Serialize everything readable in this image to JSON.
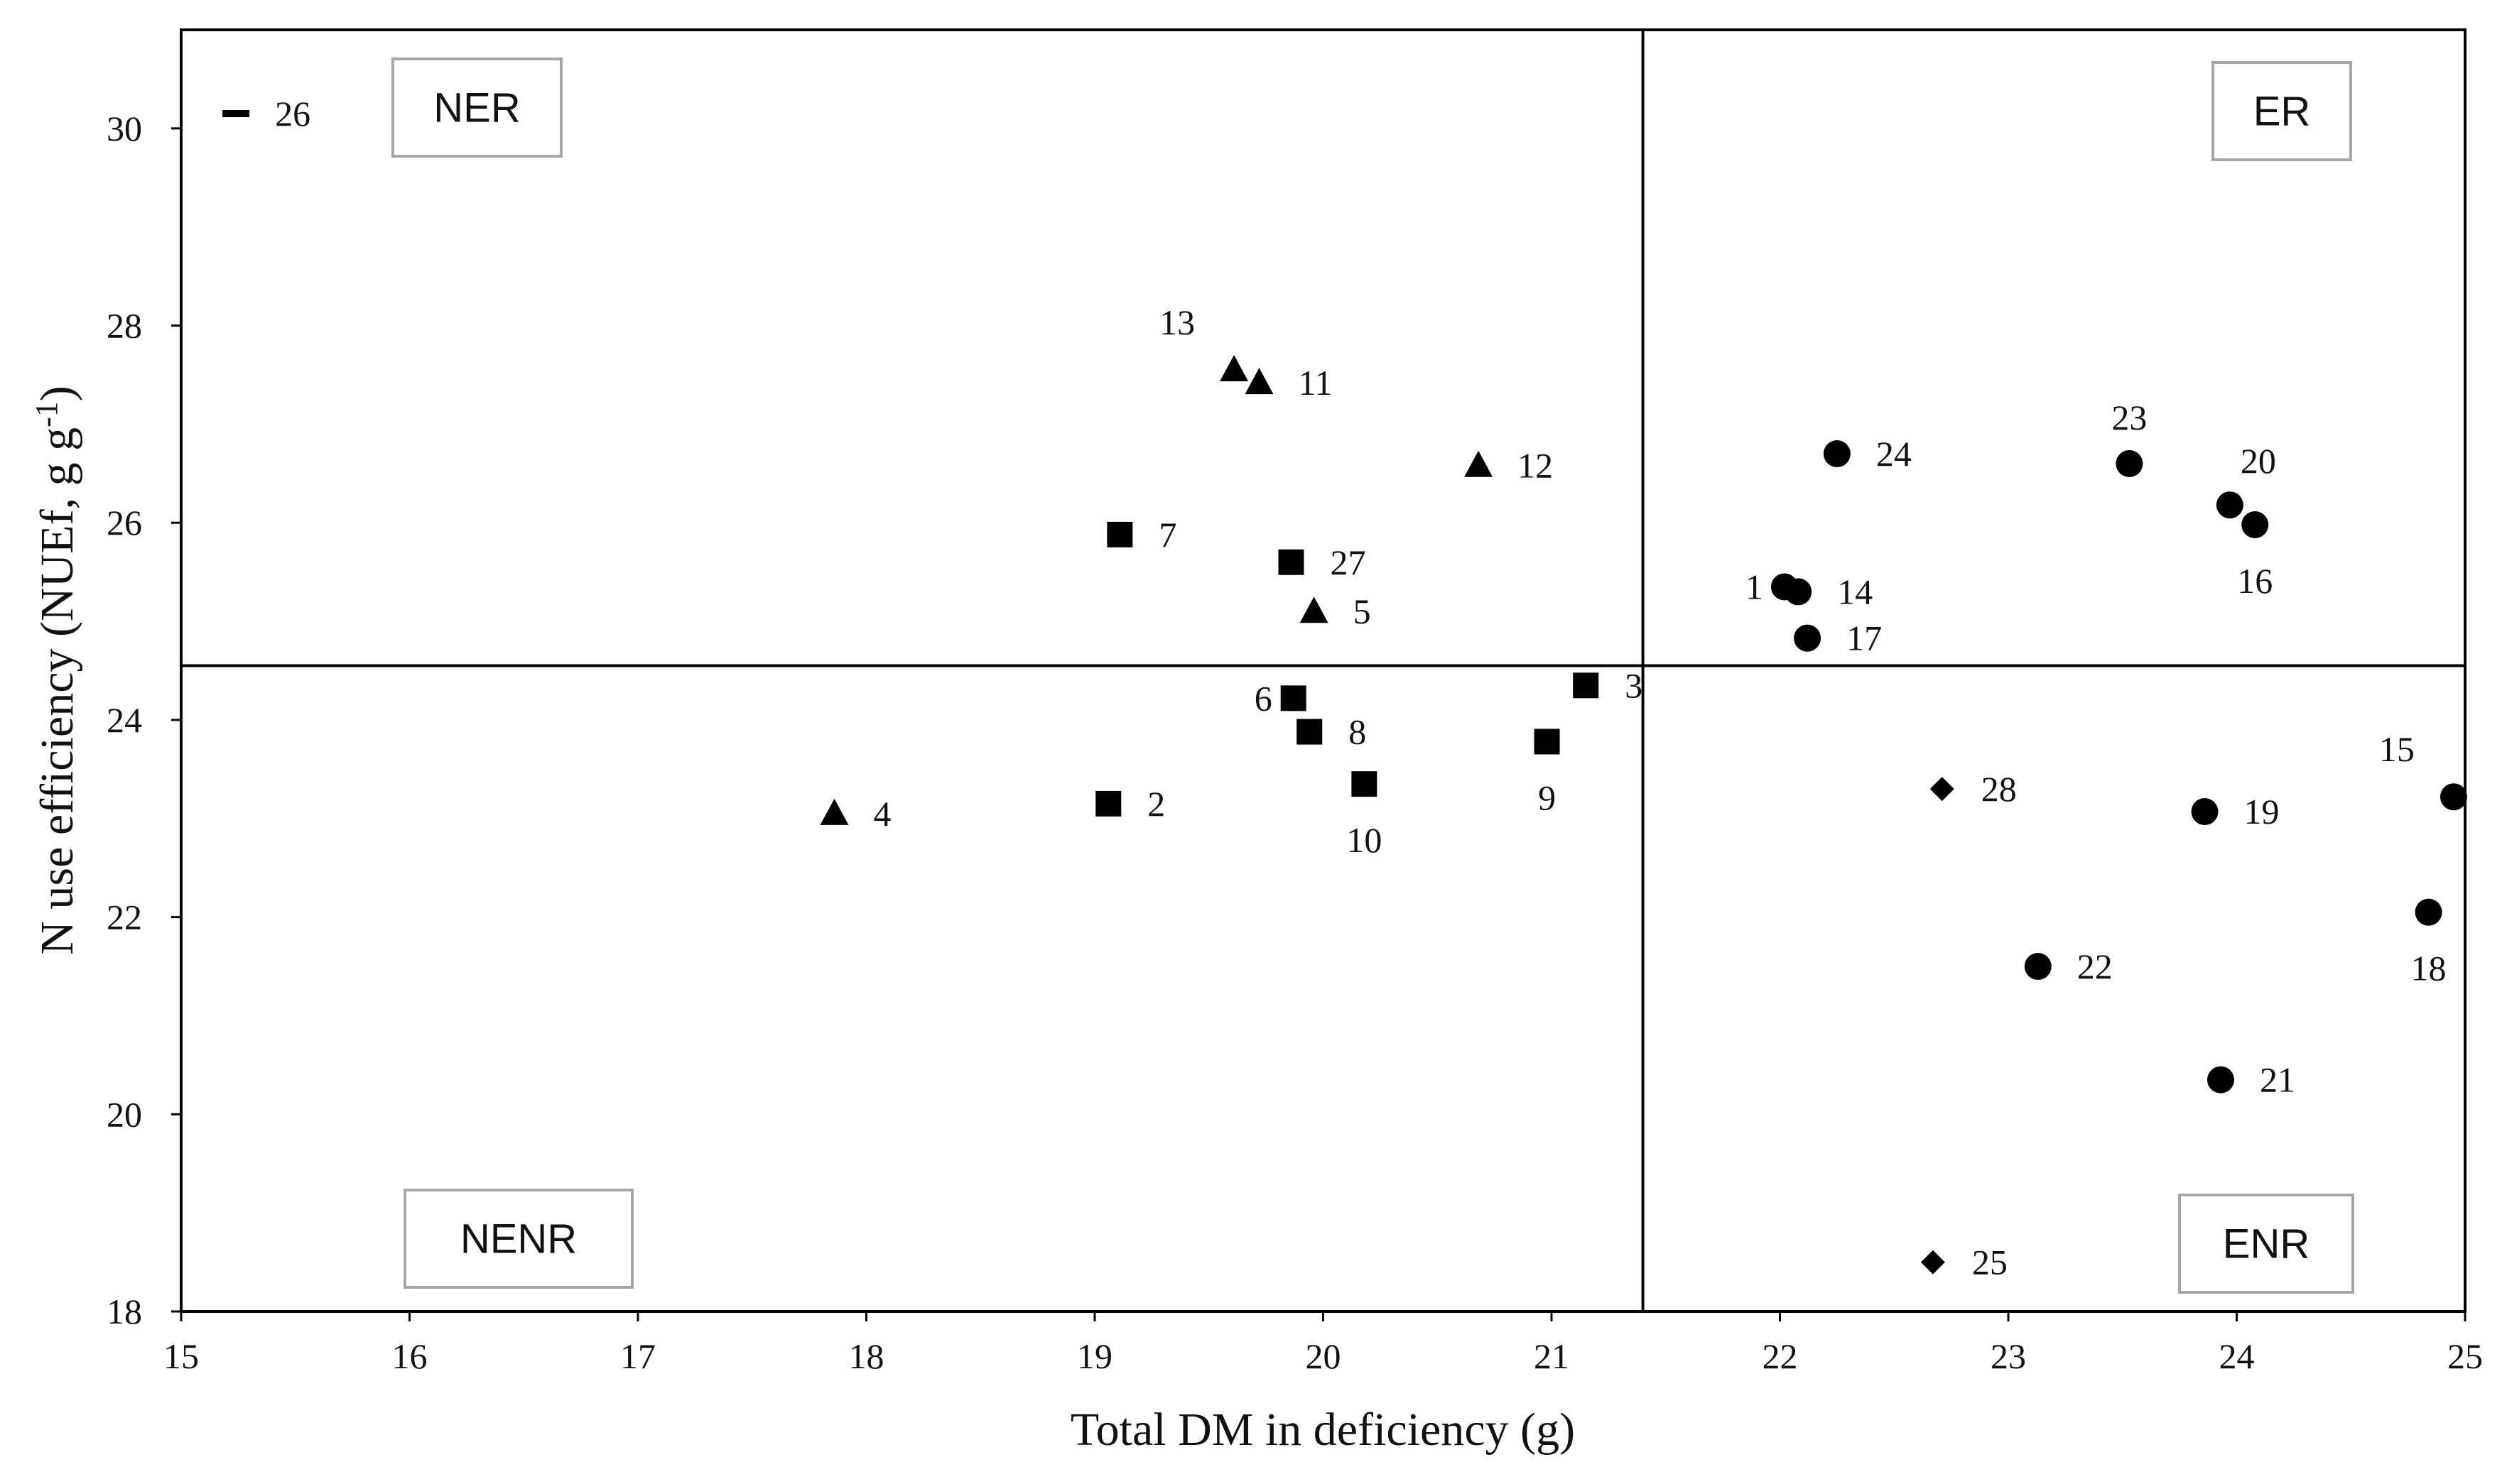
{
  "chart_data": {
    "type": "scatter",
    "xlabel": "Total DM in deficiency (g)",
    "ylabel_main": "N use efficiency (NUEf,  g g",
    "ylabel_sup": "-1",
    "ylabel_end": ")",
    "xlim": [
      15,
      25
    ],
    "ylim": [
      18,
      31
    ],
    "x_ticks": [
      15,
      16,
      17,
      18,
      19,
      20,
      21,
      22,
      23,
      24,
      25
    ],
    "y_ticks": [
      18,
      20,
      22,
      24,
      26,
      28,
      30
    ],
    "x_divider": 21.4,
    "y_divider": 24.55,
    "quadrant_labels": [
      {
        "text": "NER",
        "pos": "top-left"
      },
      {
        "text": "ER",
        "pos": "top-right"
      },
      {
        "text": "NENR",
        "pos": "bottom-left"
      },
      {
        "text": "ENR",
        "pos": "bottom-right"
      }
    ],
    "points": [
      {
        "id": "1",
        "x": 22.02,
        "y": 25.35,
        "marker": "circle",
        "label_dir": "w"
      },
      {
        "id": "2",
        "x": 19.06,
        "y": 23.15,
        "marker": "square",
        "label_dir": "e"
      },
      {
        "id": "3",
        "x": 21.15,
        "y": 24.35,
        "marker": "square",
        "label_dir": "e"
      },
      {
        "id": "4",
        "x": 17.86,
        "y": 23.05,
        "marker": "triangle",
        "label_dir": "e"
      },
      {
        "id": "5",
        "x": 19.96,
        "y": 25.1,
        "marker": "triangle",
        "label_dir": "e"
      },
      {
        "id": "6",
        "x": 19.87,
        "y": 24.22,
        "marker": "square",
        "label_dir": "w"
      },
      {
        "id": "7",
        "x": 19.11,
        "y": 25.88,
        "marker": "square",
        "label_dir": "e"
      },
      {
        "id": "8",
        "x": 19.94,
        "y": 23.88,
        "marker": "square",
        "label_dir": "e"
      },
      {
        "id": "9",
        "x": 20.98,
        "y": 23.78,
        "marker": "square",
        "label_dir": "s"
      },
      {
        "id": "10",
        "x": 20.18,
        "y": 23.35,
        "marker": "square",
        "label_dir": "s"
      },
      {
        "id": "11",
        "x": 19.72,
        "y": 27.42,
        "marker": "triangle",
        "label_dir": "e"
      },
      {
        "id": "12",
        "x": 20.68,
        "y": 26.58,
        "marker": "triangle",
        "label_dir": "e"
      },
      {
        "id": "13",
        "x": 19.61,
        "y": 27.55,
        "marker": "triangle",
        "label_dir": "nw"
      },
      {
        "id": "14",
        "x": 22.08,
        "y": 25.3,
        "marker": "circle",
        "label_dir": "e"
      },
      {
        "id": "15",
        "x": 24.95,
        "y": 23.22,
        "marker": "circle",
        "label_dir": "nw"
      },
      {
        "id": "16",
        "x": 24.08,
        "y": 25.98,
        "marker": "circle",
        "label_dir": "s"
      },
      {
        "id": "17",
        "x": 22.12,
        "y": 24.83,
        "marker": "circle",
        "label_dir": "e"
      },
      {
        "id": "18",
        "x": 24.84,
        "y": 22.05,
        "marker": "circle",
        "label_dir": "s"
      },
      {
        "id": "19",
        "x": 23.86,
        "y": 23.07,
        "marker": "circle",
        "label_dir": "e"
      },
      {
        "id": "20",
        "x": 23.97,
        "y": 26.18,
        "marker": "circle",
        "label_dir": "ne"
      },
      {
        "id": "21",
        "x": 23.93,
        "y": 20.35,
        "marker": "circle",
        "label_dir": "e"
      },
      {
        "id": "22",
        "x": 23.13,
        "y": 21.5,
        "marker": "circle",
        "label_dir": "e"
      },
      {
        "id": "23",
        "x": 23.53,
        "y": 26.6,
        "marker": "circle",
        "label_dir": "n"
      },
      {
        "id": "24",
        "x": 22.25,
        "y": 26.7,
        "marker": "circle",
        "label_dir": "e"
      },
      {
        "id": "25",
        "x": 22.67,
        "y": 18.5,
        "marker": "diamond",
        "label_dir": "e"
      },
      {
        "id": "26",
        "x": 15.24,
        "y": 30.15,
        "marker": "dash",
        "label_dir": "e"
      },
      {
        "id": "27",
        "x": 19.86,
        "y": 25.6,
        "marker": "square",
        "label_dir": "e"
      },
      {
        "id": "28",
        "x": 22.71,
        "y": 23.3,
        "marker": "diamond",
        "label_dir": "e"
      }
    ]
  }
}
